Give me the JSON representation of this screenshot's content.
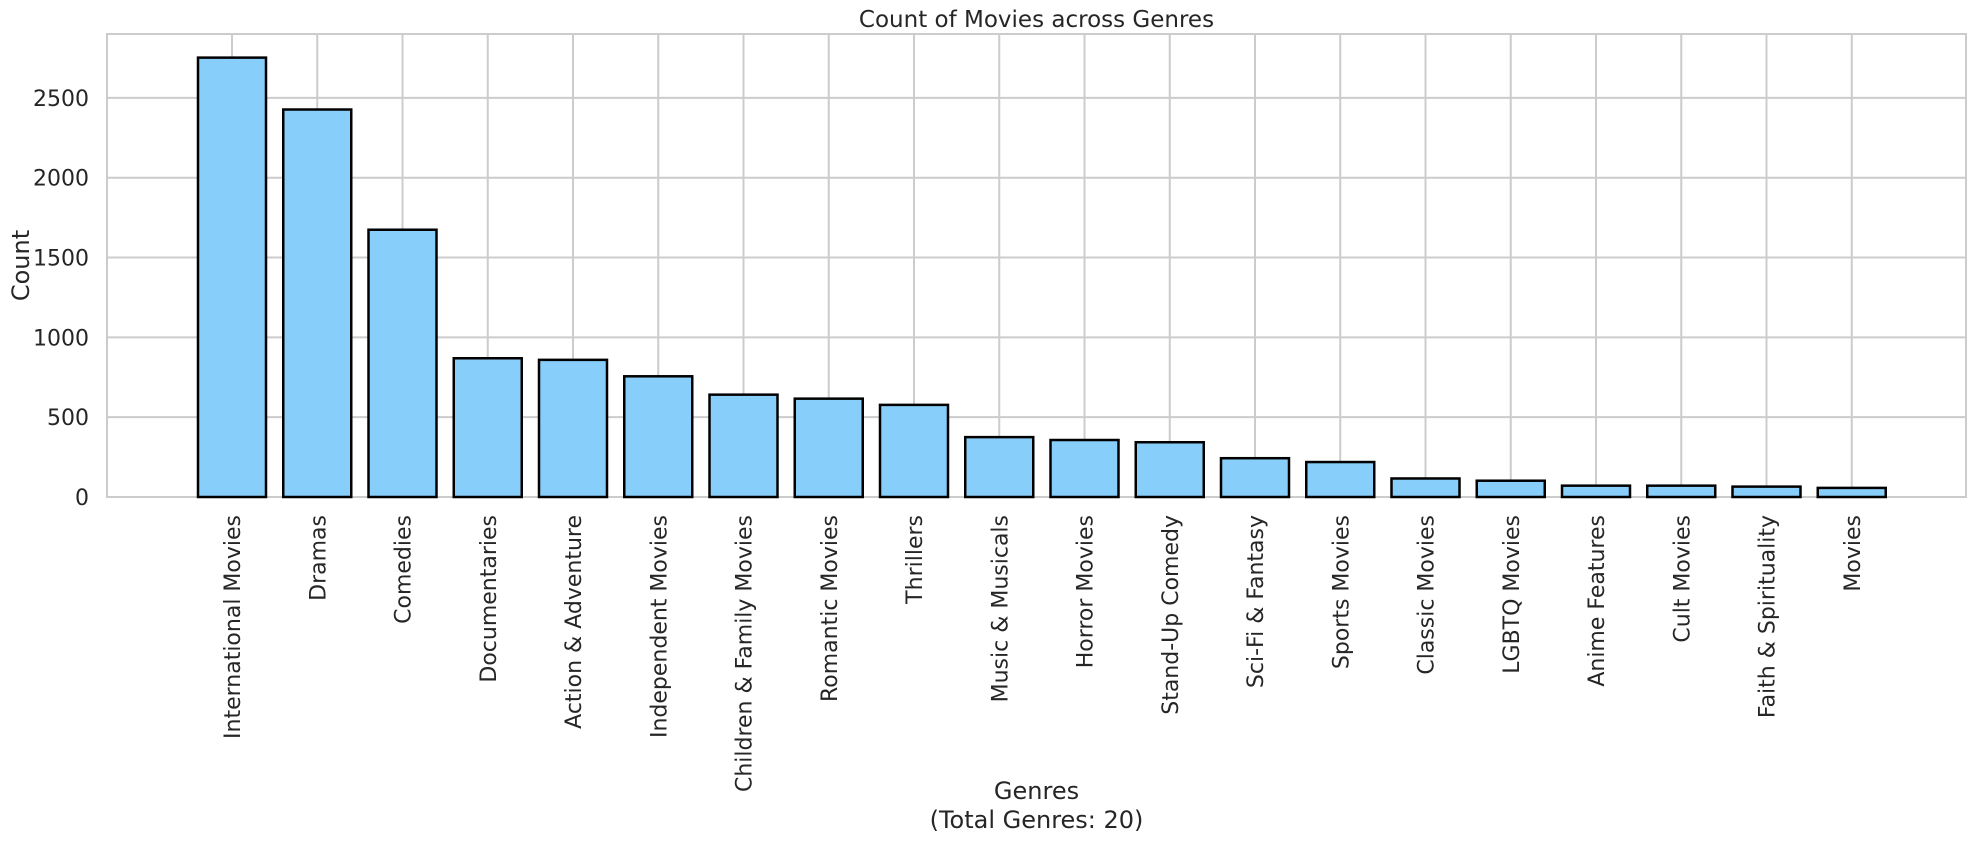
{
  "chart_data": {
    "type": "bar",
    "title": "Count of Movies across Genres",
    "xlabel": "Genres",
    "xlabel_sub": "(Total Genres: 20)",
    "ylabel": "Count",
    "ylim": [
      0,
      2900
    ],
    "yticks": [
      0,
      500,
      1000,
      1500,
      2000,
      2500
    ],
    "grid": true,
    "legend": "none",
    "colors": {
      "bar_fill": "#87CEFA",
      "bar_edge": "#000000",
      "grid": "#cccccc",
      "text": "#262626"
    },
    "categories": [
      "International Movies",
      "Dramas",
      "Comedies",
      "Documentaries",
      "Action & Adventure",
      "Independent Movies",
      "Children & Family Movies",
      "Romantic Movies",
      "Thrillers",
      "Music & Musicals",
      "Horror Movies",
      "Stand-Up Comedy",
      "Sci-Fi & Fantasy",
      "Sports Movies",
      "Classic Movies",
      "LGBTQ Movies",
      "Anime Features",
      "Cult Movies",
      "Faith & Spirituality",
      "Movies"
    ],
    "values": [
      2752,
      2427,
      1674,
      869,
      859,
      756,
      641,
      616,
      577,
      375,
      357,
      343,
      243,
      219,
      116,
      102,
      71,
      71,
      65,
      57
    ]
  }
}
